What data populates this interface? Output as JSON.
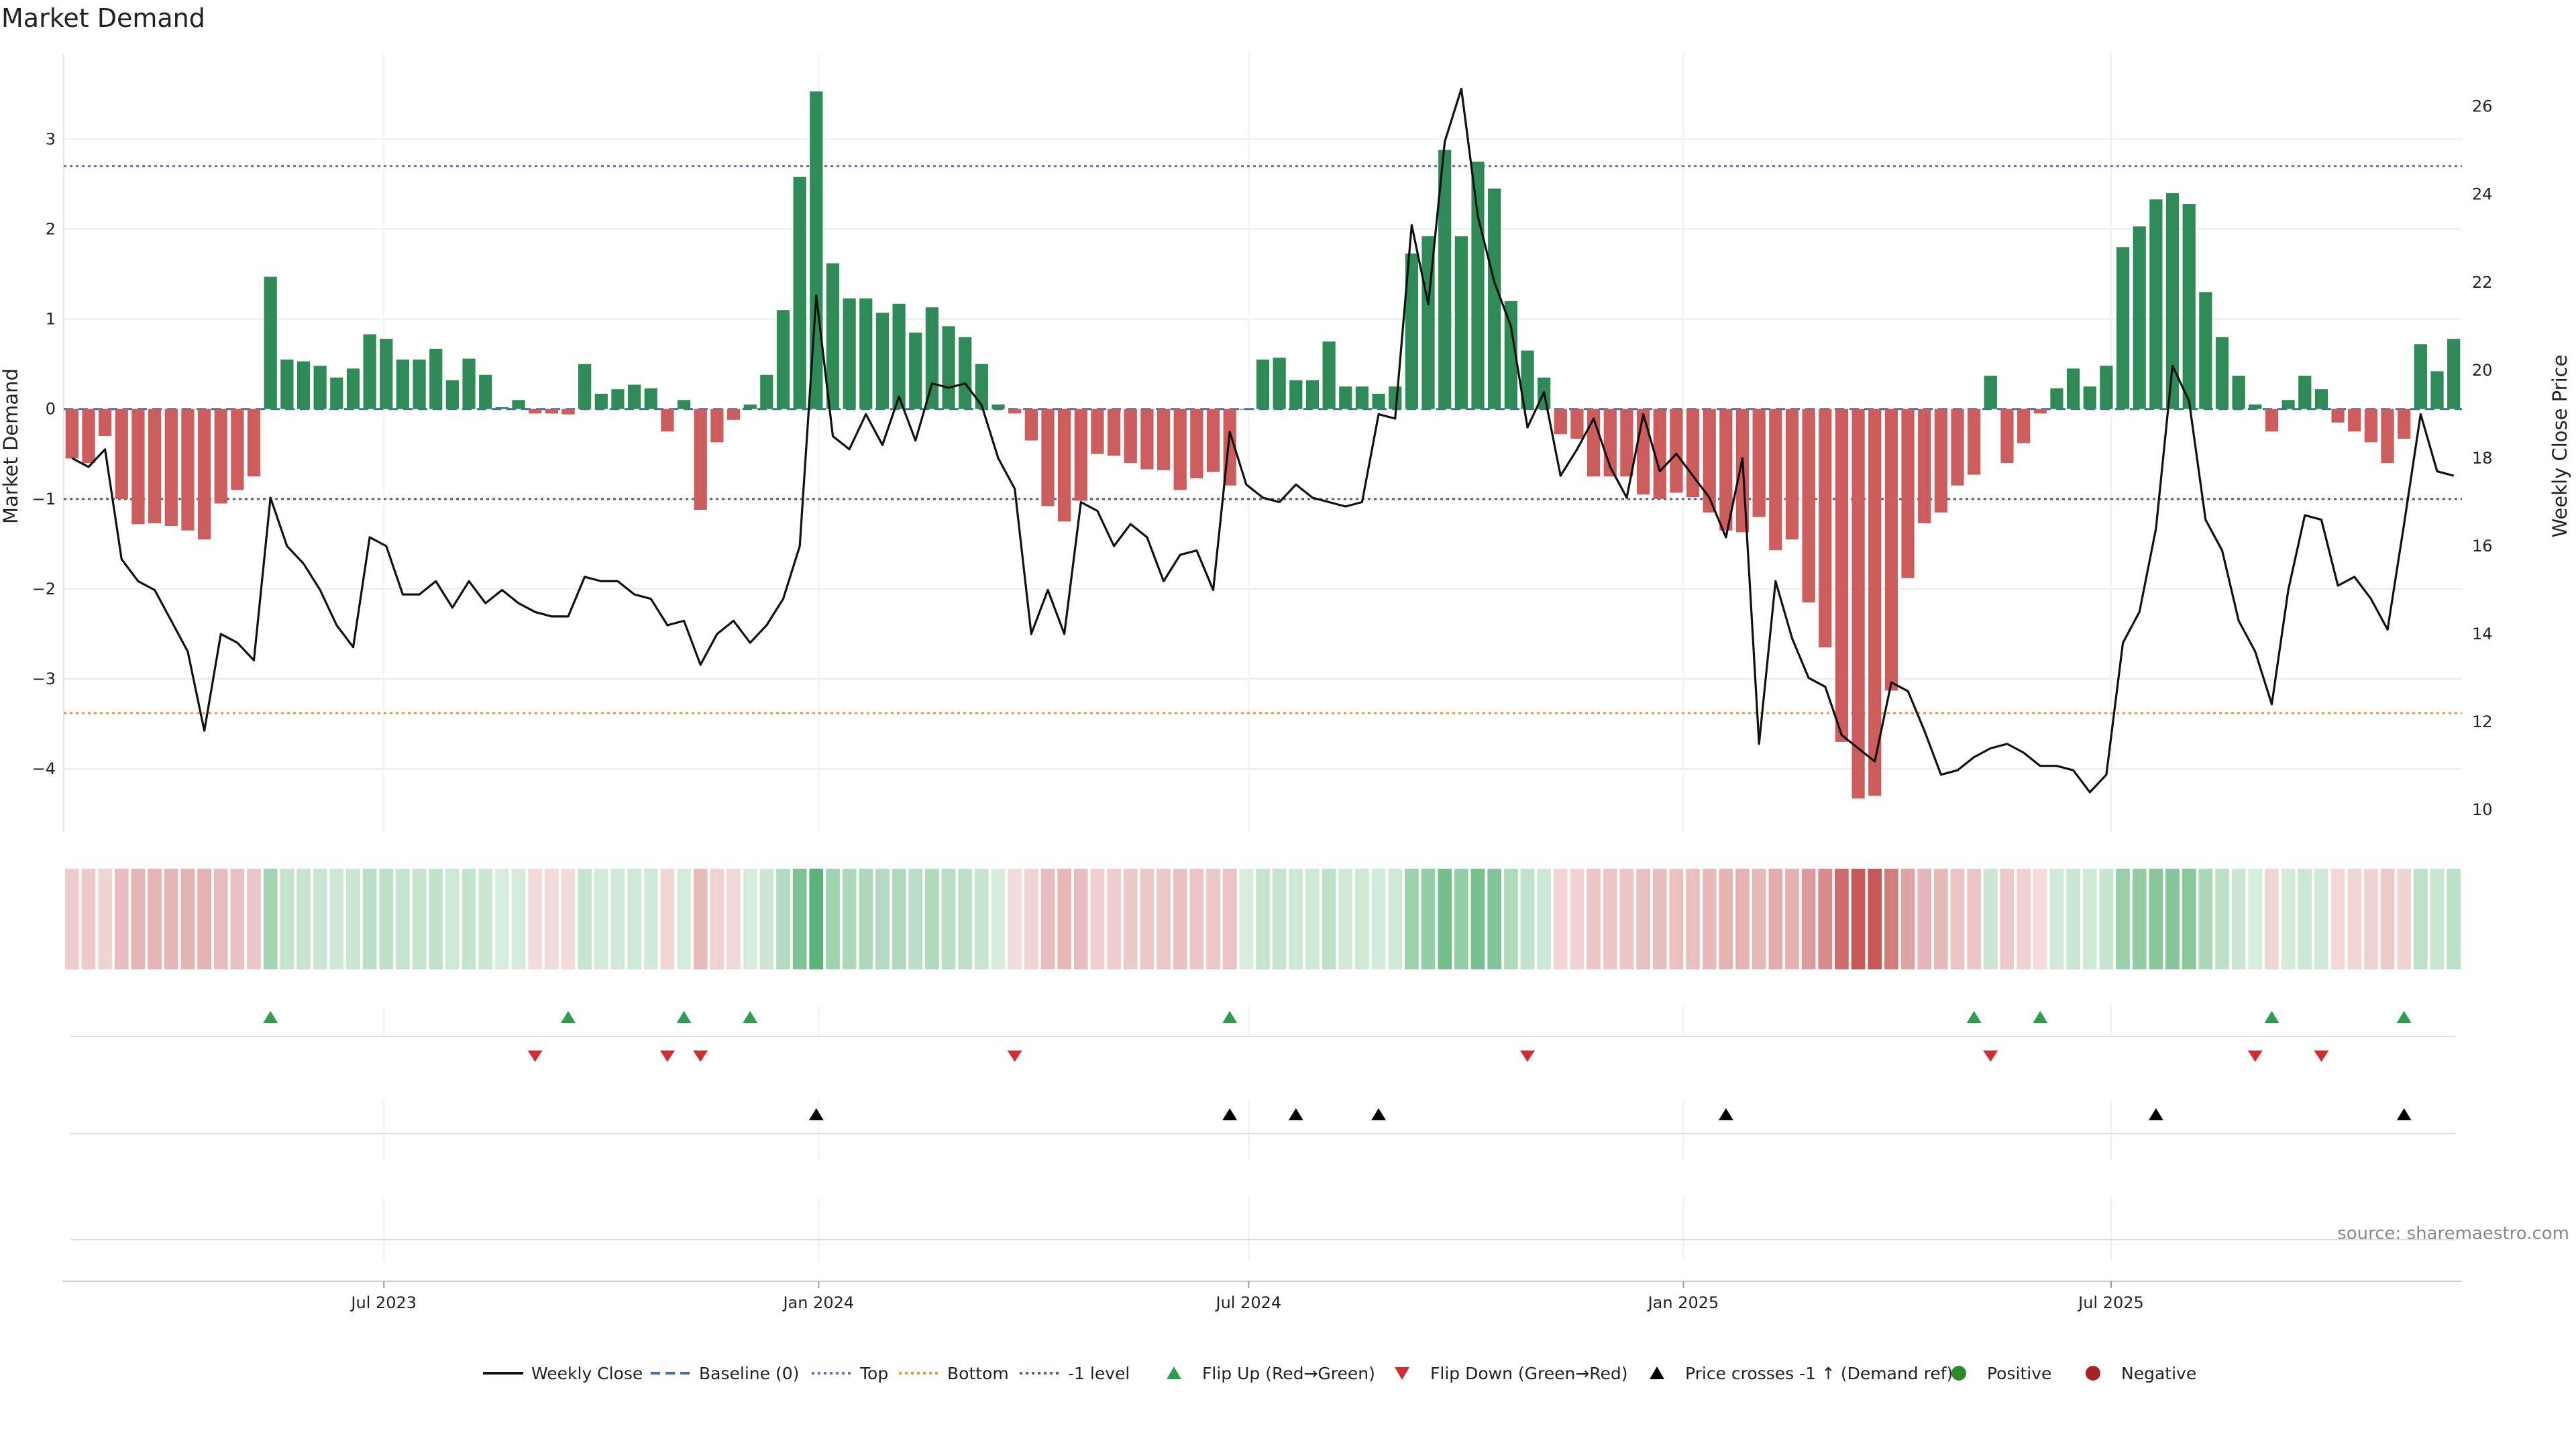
{
  "chart_data": {
    "type": "bar",
    "title": "Market Demand",
    "ylabel": "Market Demand",
    "y2label": "Weekly Close Price",
    "ylim": [
      -4.7,
      3.95
    ],
    "y2lim": [
      9.5,
      27.2
    ],
    "yticks": [
      3,
      2,
      1,
      0,
      -1,
      -2,
      -3,
      -4
    ],
    "ytick_labels": [
      "3",
      "2",
      "1",
      "0",
      "−1",
      "−2",
      "−3",
      "−4"
    ],
    "y2ticks": [
      26,
      24,
      22,
      20,
      18,
      16,
      14,
      12,
      10
    ],
    "x_start": "2023-02-19",
    "x_step_days": 7,
    "xticks": [
      {
        "label": "Jul 2023",
        "date": "2023-07-01"
      },
      {
        "label": "Jan 2024",
        "date": "2024-01-01"
      },
      {
        "label": "Jul 2024",
        "date": "2024-07-01"
      },
      {
        "label": "Jan 2025",
        "date": "2025-01-01"
      },
      {
        "label": "Jul 2025",
        "date": "2025-07-01"
      }
    ],
    "levels": {
      "top": 2.7,
      "bottom": -3.38,
      "minus_one": -1,
      "baseline": 0
    },
    "demand": [
      -0.55,
      -0.6,
      -0.3,
      -1.0,
      -1.28,
      -1.27,
      -1.3,
      -1.35,
      -1.45,
      -1.05,
      -0.9,
      -0.75,
      1.47,
      0.55,
      0.53,
      0.48,
      0.35,
      0.45,
      0.83,
      0.78,
      0.55,
      0.55,
      0.67,
      0.32,
      0.56,
      0.38,
      0.02,
      0.1,
      -0.05,
      -0.05,
      -0.06,
      0.5,
      0.17,
      0.22,
      0.27,
      0.23,
      -0.25,
      0.1,
      -1.12,
      -0.37,
      -0.12,
      0.05,
      0.38,
      1.1,
      2.58,
      3.53,
      1.62,
      1.23,
      1.23,
      1.07,
      1.17,
      0.85,
      1.13,
      0.92,
      0.8,
      0.5,
      0.05,
      -0.05,
      -0.35,
      -1.08,
      -1.25,
      -1.02,
      -0.5,
      -0.52,
      -0.6,
      -0.67,
      -0.68,
      -0.9,
      -0.77,
      -0.7,
      -0.85,
      0.0,
      0.55,
      0.57,
      0.32,
      0.32,
      0.75,
      0.25,
      0.25,
      0.17,
      0.25,
      1.73,
      1.92,
      2.88,
      1.92,
      2.75,
      2.45,
      1.2,
      0.65,
      0.35,
      -0.28,
      -0.33,
      -0.75,
      -0.75,
      -0.75,
      -0.95,
      -1.0,
      -0.93,
      -0.98,
      -1.15,
      -1.35,
      -1.37,
      -1.2,
      -1.57,
      -1.45,
      -2.15,
      -2.65,
      -3.7,
      -4.33,
      -4.3,
      -3.13,
      -1.88,
      -1.27,
      -1.15,
      -0.85,
      -0.73,
      0.37,
      -0.6,
      -0.38,
      -0.05,
      0.23,
      0.45,
      0.25,
      0.48,
      1.8,
      2.03,
      2.33,
      2.4,
      2.28,
      1.3,
      0.8,
      0.37,
      0.05,
      -0.25,
      0.1,
      0.37,
      0.22,
      -0.15,
      -0.25,
      -0.37,
      -0.6,
      -0.33,
      0.72,
      0.42,
      0.78
    ],
    "weekly_close": [
      18.0,
      17.8,
      18.2,
      15.7,
      15.2,
      15.0,
      14.3,
      13.6,
      11.8,
      14.0,
      13.8,
      13.4,
      17.1,
      16.0,
      15.6,
      15.0,
      14.2,
      13.7,
      16.2,
      16.0,
      14.9,
      14.9,
      15.2,
      14.6,
      15.2,
      14.7,
      15.0,
      14.7,
      14.5,
      14.4,
      14.4,
      15.3,
      15.2,
      15.2,
      14.9,
      14.8,
      14.2,
      14.3,
      13.3,
      14.0,
      14.3,
      13.8,
      14.2,
      14.8,
      16.0,
      21.7,
      18.5,
      18.2,
      19.0,
      18.3,
      19.4,
      18.4,
      19.7,
      19.6,
      19.7,
      19.2,
      18.0,
      17.3,
      14.0,
      15.0,
      14.0,
      17.0,
      16.8,
      16.0,
      16.5,
      16.2,
      15.2,
      15.8,
      15.9,
      15.0,
      18.6,
      17.4,
      17.1,
      17.0,
      17.4,
      17.1,
      17.0,
      16.9,
      17.0,
      19.0,
      18.9,
      23.3,
      21.5,
      25.2,
      26.4,
      23.5,
      22.0,
      21.0,
      18.7,
      19.5,
      17.6,
      18.2,
      18.9,
      17.8,
      17.1,
      19.0,
      17.7,
      18.1,
      17.6,
      17.1,
      16.2,
      18.0,
      11.5,
      15.2,
      13.9,
      13.0,
      12.8,
      11.7,
      11.4,
      11.1,
      12.9,
      12.7,
      11.8,
      10.8,
      10.9,
      11.2,
      11.4,
      11.5,
      11.3,
      11.0,
      11.0,
      10.9,
      10.4,
      10.8,
      13.8,
      14.5,
      16.4,
      20.1,
      19.3,
      16.6,
      15.9,
      14.3,
      13.6,
      12.4,
      15.0,
      16.7,
      16.6,
      15.1,
      15.3,
      14.8,
      14.1,
      16.5,
      19.0,
      17.7,
      17.6
    ],
    "demand_heat_strip": "one cell per week, shaded by demand value",
    "flip_up_weeks": [
      12,
      30,
      37,
      41,
      70,
      115,
      119,
      133,
      141
    ],
    "flip_down_weeks": [
      28,
      36,
      38,
      57,
      88,
      116,
      132,
      136
    ],
    "price_cross_weeks": [
      45,
      70,
      74,
      79,
      100,
      126,
      141
    ],
    "legend": {
      "placement": "bottom-center",
      "items": [
        {
          "label": "Weekly Close",
          "color": "#111111"
        },
        {
          "label": "Baseline (0)",
          "color": "#3b6fb0"
        },
        {
          "label": "Top",
          "color": "#6b6bbf"
        },
        {
          "label": "Bottom",
          "color": "#e09a3c"
        },
        {
          "label": "-1 level",
          "color": "#5a5a7a"
        },
        {
          "label": "Flip Up (Red→Green)",
          "color": "#2e9d4f"
        },
        {
          "label": "Flip Down (Green→Red)",
          "color": "#d12f2f"
        },
        {
          "label": "Price crosses -1 ↑ (Demand ref)",
          "color": "#000000"
        },
        {
          "label": "Positive",
          "color": "#2a8a2a"
        },
        {
          "label": "Negative",
          "color": "#a82020"
        }
      ]
    },
    "source": "source: sharemaestro.com",
    "grid": true
  },
  "colors": {
    "positive_bar": "#2e8b57",
    "negative_bar": "#cd5c5c",
    "weekly_close": "#111111",
    "top_line": "#6b6bbf",
    "bottom_line": "#e09a3c",
    "minus_one_line": "#5a5a7a",
    "baseline": "#3b6fb0",
    "flip_up": "#2e9d4f",
    "flip_down": "#d12f2f",
    "price_cross": "#000000"
  }
}
